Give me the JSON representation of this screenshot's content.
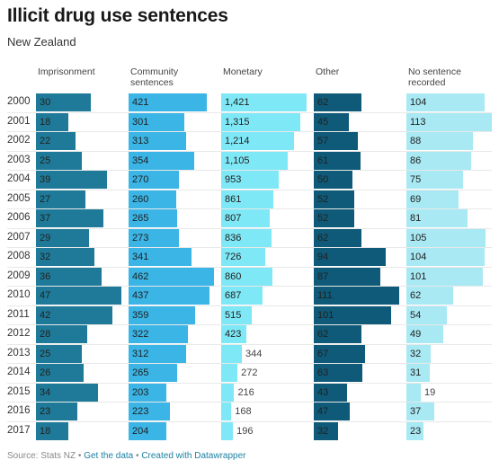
{
  "title": "Illicit drug use sentences",
  "subtitle": "New Zealand",
  "footer": {
    "source": "Source: Stats NZ",
    "sep": " • ",
    "get_data": "Get the data",
    "created": "Created with Datawrapper"
  },
  "chart_data": {
    "type": "table",
    "years": [
      "2000",
      "2001",
      "2002",
      "2003",
      "2004",
      "2005",
      "2006",
      "2007",
      "2008",
      "2009",
      "2010",
      "2011",
      "2012",
      "2013",
      "2014",
      "2015",
      "2016",
      "2017"
    ],
    "columns": [
      {
        "key": "imprisonment",
        "header": [
          "Imprisonment"
        ],
        "color": "#1f7a99",
        "values": [
          30,
          18,
          22,
          25,
          39,
          27,
          37,
          29,
          32,
          36,
          47,
          42,
          28,
          25,
          26,
          34,
          23,
          18
        ]
      },
      {
        "key": "community",
        "header": [
          "Community",
          "sentences"
        ],
        "color": "#3ab5e6",
        "values": [
          421,
          301,
          313,
          354,
          270,
          260,
          265,
          273,
          341,
          462,
          437,
          359,
          322,
          312,
          265,
          203,
          223,
          204
        ]
      },
      {
        "key": "monetary",
        "header": [
          "Monetary"
        ],
        "color": "#7fe8f6",
        "values": [
          1421,
          1315,
          1214,
          1105,
          953,
          861,
          807,
          836,
          726,
          860,
          687,
          515,
          423,
          344,
          272,
          216,
          168,
          196
        ]
      },
      {
        "key": "other",
        "header": [
          "Other"
        ],
        "color": "#0f5a78",
        "values": [
          62,
          45,
          57,
          61,
          50,
          52,
          52,
          62,
          94,
          87,
          111,
          101,
          62,
          67,
          63,
          43,
          47,
          32
        ]
      },
      {
        "key": "no_sentence",
        "header": [
          "No sentence",
          "recorded"
        ],
        "color": "#a8e9f4",
        "values": [
          104,
          113,
          88,
          86,
          75,
          69,
          81,
          105,
          104,
          101,
          62,
          54,
          49,
          32,
          31,
          19,
          37,
          23
        ]
      }
    ]
  }
}
